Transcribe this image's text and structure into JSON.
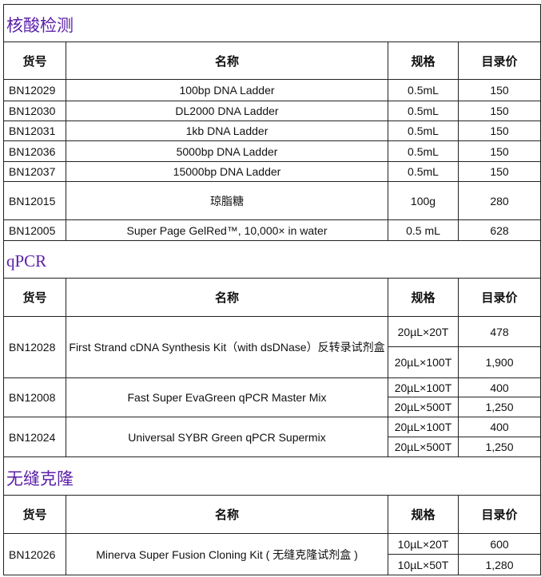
{
  "columns": [
    "货号",
    "名称",
    "规格",
    "目录价"
  ],
  "sections": [
    {
      "title": "核酸检测",
      "products": [
        {
          "code": "BN12029",
          "name": "100bp DNA Ladder",
          "specs": [
            {
              "spec": "0.5mL",
              "price": "150"
            }
          ]
        },
        {
          "code": "BN12030",
          "name": "DL2000 DNA Ladder",
          "specs": [
            {
              "spec": "0.5mL",
              "price": "150"
            }
          ]
        },
        {
          "code": "BN12031",
          "name": "1kb DNA Ladder",
          "specs": [
            {
              "spec": "0.5mL",
              "price": "150"
            }
          ]
        },
        {
          "code": "BN12036",
          "name": "5000bp DNA Ladder",
          "specs": [
            {
              "spec": "0.5mL",
              "price": "150"
            }
          ]
        },
        {
          "code": "BN12037",
          "name": "15000bp DNA Ladder",
          "specs": [
            {
              "spec": "0.5mL",
              "price": "150"
            }
          ]
        },
        {
          "code": "BN12015",
          "name": "琼脂糖",
          "specs": [
            {
              "spec": "100g",
              "price": "280"
            }
          ]
        },
        {
          "code": "BN12005",
          "name": "Super Page GelRed™, 10,000× in water",
          "specs": [
            {
              "spec": "0.5 mL",
              "price": "628"
            }
          ]
        }
      ]
    },
    {
      "title": "qPCR",
      "products": [
        {
          "code": "BN12028",
          "name": "First Strand cDNA Synthesis Kit（with dsDNase）反转录试剂盒",
          "specs": [
            {
              "spec": "20µL×20T",
              "price": "478"
            },
            {
              "spec": "20µL×100T",
              "price": "1,900"
            }
          ]
        },
        {
          "code": "BN12008",
          "name": "Fast Super EvaGreen qPCR Master Mix",
          "specs": [
            {
              "spec": "20µL×100T",
              "price": "400"
            },
            {
              "spec": "20µL×500T",
              "price": "1,250"
            }
          ]
        },
        {
          "code": "BN12024",
          "name": "Universal SYBR Green qPCR Supermix",
          "specs": [
            {
              "spec": "20µL×100T",
              "price": "400"
            },
            {
              "spec": "20µL×500T",
              "price": "1,250"
            }
          ]
        }
      ]
    },
    {
      "title": "无缝克隆",
      "products": [
        {
          "code": "BN12026",
          "name": "Minerva Super Fusion Cloning Kit ( 无缝克隆试剂盒 )",
          "specs": [
            {
              "spec": "10µL×20T",
              "price": "600"
            },
            {
              "spec": "10µL×50T",
              "price": "1,280"
            }
          ]
        }
      ]
    }
  ]
}
